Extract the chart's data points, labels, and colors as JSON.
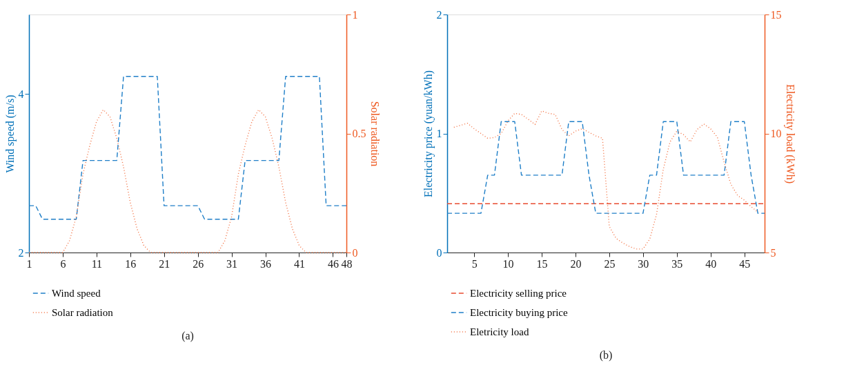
{
  "chart_data": [
    {
      "type": "line",
      "xlim": [
        1,
        48
      ],
      "xticks": [
        1,
        6,
        11,
        16,
        21,
        26,
        31,
        36,
        41,
        46,
        48
      ],
      "ylim": [
        2,
        5
      ],
      "yticks": [
        2,
        4
      ],
      "y2lim": [
        0,
        1
      ],
      "y2ticks": [
        0,
        0.5,
        1
      ],
      "ylabel": "Wind speed (m/s)",
      "y2label": "Solar radiation",
      "grid": false,
      "legend": "bottom left",
      "annotations": [
        "(a)"
      ],
      "series": [
        {
          "name": "Wind speed",
          "color": "#1f7fc8",
          "line_style": "dashed",
          "axis": "y",
          "x": [
            1,
            2,
            3,
            8,
            9,
            14,
            15,
            20,
            21,
            26,
            27,
            32,
            33,
            38,
            39,
            44,
            45,
            48
          ],
          "values": [
            2.59,
            2.59,
            2.42,
            2.42,
            3.16,
            3.16,
            4.22,
            4.22,
            2.59,
            2.59,
            2.42,
            2.42,
            3.16,
            3.16,
            4.22,
            4.22,
            2.59,
            2.59
          ]
        },
        {
          "name": "Solar radiation",
          "color": "#f26b3a",
          "line_style": "dotted",
          "axis": "y2",
          "x": [
            1,
            6,
            7,
            8,
            9,
            10,
            11,
            12,
            13,
            14,
            15,
            16,
            17,
            18,
            19,
            29,
            30,
            31,
            32,
            33,
            34,
            35,
            36,
            37,
            38,
            39,
            40,
            41,
            42,
            48
          ],
          "values": [
            0,
            0,
            0.05,
            0.15,
            0.33,
            0.45,
            0.55,
            0.6,
            0.57,
            0.48,
            0.36,
            0.21,
            0.1,
            0.03,
            0,
            0,
            0.05,
            0.15,
            0.33,
            0.45,
            0.55,
            0.6,
            0.57,
            0.48,
            0.36,
            0.21,
            0.1,
            0.03,
            0,
            0
          ]
        }
      ]
    },
    {
      "type": "line",
      "xlim": [
        1,
        48
      ],
      "xticks": [
        5,
        10,
        15,
        20,
        25,
        30,
        35,
        40,
        45
      ],
      "ylim": [
        0,
        2
      ],
      "yticks": [
        0,
        1,
        2
      ],
      "y2lim": [
        5,
        15
      ],
      "y2ticks": [
        5,
        10,
        15
      ],
      "ylabel": "Electricity price (yuan/kWh)",
      "y2label": "Electricity load (kWh)",
      "grid": false,
      "legend": "bottom left",
      "annotations": [
        "(b)"
      ],
      "series": [
        {
          "name": "Electricity selling price",
          "color": "#e84a2f",
          "line_style": "dashed",
          "axis": "y",
          "x": [
            1,
            48
          ],
          "values": [
            0.41,
            0.41
          ]
        },
        {
          "name": "Electricity buying price",
          "color": "#1f7fc8",
          "line_style": "dashed",
          "axis": "y",
          "x": [
            1,
            6,
            7,
            8,
            9,
            11,
            12,
            18,
            19,
            21,
            22,
            23,
            30,
            31,
            32,
            33,
            35,
            36,
            42,
            43,
            45,
            46,
            47,
            48
          ],
          "values": [
            0.33,
            0.33,
            0.65,
            0.65,
            1.1,
            1.1,
            0.65,
            0.65,
            1.1,
            1.1,
            0.65,
            0.33,
            0.33,
            0.65,
            0.65,
            1.1,
            1.1,
            0.65,
            0.65,
            1.1,
            1.1,
            0.65,
            0.33,
            0.33
          ]
        },
        {
          "name": "Eletricity load",
          "color": "#f26b3a",
          "line_style": "dotted",
          "axis": "y2",
          "x": [
            2,
            4,
            5,
            7,
            8,
            9,
            10,
            11,
            12,
            13,
            14,
            15,
            16,
            17,
            18,
            19,
            20,
            21,
            22,
            23,
            24,
            25,
            26,
            27,
            28,
            29,
            30,
            31,
            32,
            33,
            34,
            35,
            36,
            37,
            38,
            39,
            40,
            41,
            42,
            43,
            44,
            45,
            46,
            47
          ],
          "values": [
            10.26,
            10.43,
            10.2,
            9.8,
            9.83,
            10.0,
            10.53,
            10.85,
            10.8,
            10.6,
            10.38,
            10.95,
            10.85,
            10.8,
            10.17,
            9.9,
            10.1,
            10.2,
            10.05,
            9.9,
            9.8,
            6.1,
            5.6,
            5.4,
            5.25,
            5.15,
            5.15,
            5.57,
            6.6,
            8.5,
            9.65,
            10.1,
            9.95,
            9.65,
            10.17,
            10.4,
            10.2,
            9.85,
            8.8,
            7.87,
            7.4,
            7.2,
            6.93,
            6.7
          ]
        }
      ]
    }
  ]
}
